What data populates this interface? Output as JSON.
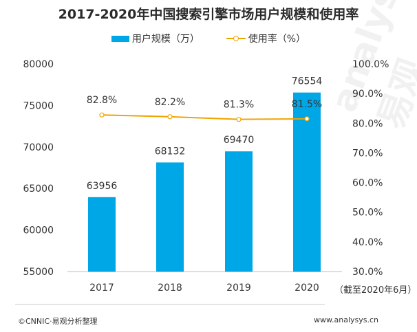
{
  "chart_data": {
    "type": "bar+line",
    "title": "2017-2020年中国搜索引擎市场用户规模和使用率",
    "categories": [
      "2017",
      "2018",
      "2019",
      "2020"
    ],
    "series": [
      {
        "name": "用户规模（万）",
        "type": "bar",
        "axis": "left",
        "values": [
          63956,
          68132,
          69470,
          76554
        ],
        "labels": [
          "63956",
          "68132",
          "69470",
          "76554"
        ],
        "color": "#00a7e7"
      },
      {
        "name": "使用率（%）",
        "type": "line",
        "axis": "right",
        "values": [
          82.8,
          82.2,
          81.3,
          81.5
        ],
        "labels": [
          "82.8%",
          "82.2%",
          "81.3%",
          "81.5%"
        ],
        "color": "#f0a400"
      }
    ],
    "left_axis": {
      "ylim": [
        55000,
        80000
      ],
      "ticks": [
        "55000",
        "60000",
        "65000",
        "70000",
        "75000",
        "80000"
      ]
    },
    "right_axis": {
      "ylim": [
        30,
        100
      ],
      "ticks": [
        "30.0%",
        "40.0%",
        "50.0%",
        "60.0%",
        "70.0%",
        "80.0%",
        "90.0%",
        "100.0%"
      ]
    },
    "grid": false,
    "legend": "top",
    "note": "（截至2020年6月）"
  },
  "footer": {
    "source": "©CNNIC·易观分析整理",
    "website": "www.analysys.cn"
  },
  "watermark": "analysys 易观"
}
